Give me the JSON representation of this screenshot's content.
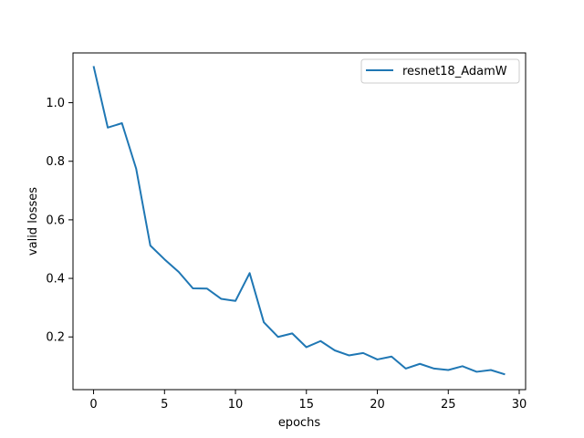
{
  "chart_data": {
    "type": "line",
    "title": "",
    "xlabel": "epochs",
    "ylabel": "valid losses",
    "xlim": [
      -1.45,
      30.45
    ],
    "ylim": [
      0.02,
      1.17
    ],
    "xticks": [
      0,
      5,
      10,
      15,
      20,
      25,
      30
    ],
    "xtick_labels": [
      "0",
      "5",
      "10",
      "15",
      "20",
      "25",
      "30"
    ],
    "yticks": [
      0.2,
      0.4,
      0.6,
      0.8,
      1.0
    ],
    "ytick_labels": [
      "0.2",
      "0.4",
      "0.6",
      "0.8",
      "1.0"
    ],
    "grid": false,
    "legend_position": "upper-right",
    "series": [
      {
        "name": "resnet18_AdamW",
        "color": "#1f77b4",
        "x": [
          0,
          1,
          2,
          3,
          4,
          5,
          6,
          7,
          8,
          9,
          10,
          11,
          12,
          13,
          14,
          15,
          16,
          17,
          18,
          19,
          20,
          21,
          22,
          23,
          24,
          25,
          26,
          27,
          28,
          29
        ],
        "y": [
          1.125,
          0.915,
          0.93,
          0.775,
          0.512,
          0.465,
          0.422,
          0.366,
          0.365,
          0.33,
          0.323,
          0.418,
          0.25,
          0.2,
          0.212,
          0.165,
          0.186,
          0.154,
          0.137,
          0.145,
          0.123,
          0.133,
          0.092,
          0.108,
          0.092,
          0.087,
          0.1,
          0.081,
          0.087,
          0.072
        ]
      }
    ]
  }
}
